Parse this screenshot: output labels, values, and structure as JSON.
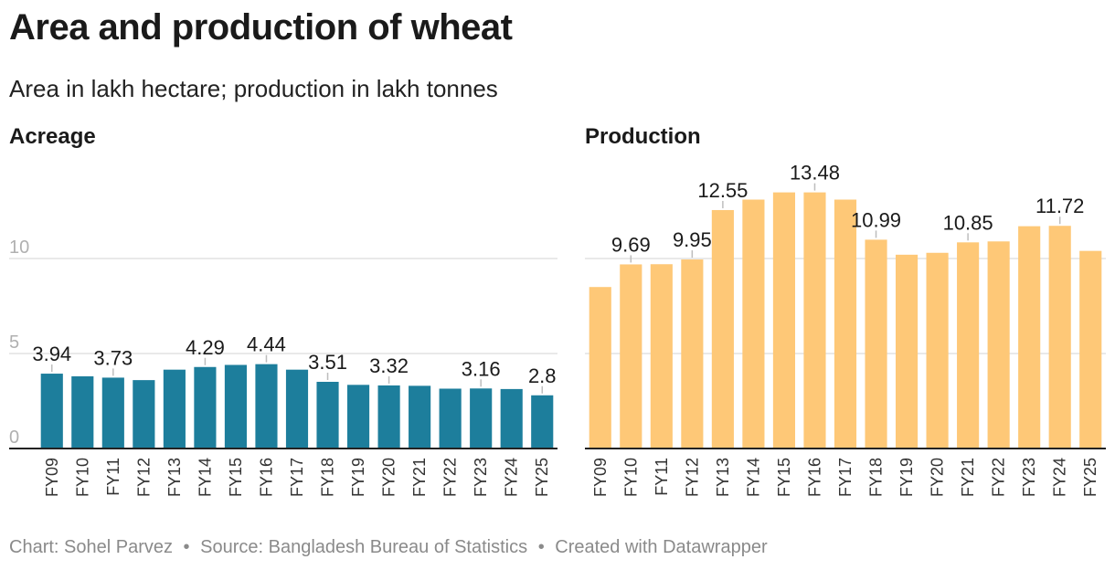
{
  "title": "Area and production of wheat",
  "subtitle": "Area in lakh hectare; production in lakh tonnes",
  "footer": {
    "chart_by": "Chart: Sohel Parvez",
    "source": "Source: Bangladesh Bureau of Statistics",
    "created": "Created with Datawrapper",
    "separator": "•"
  },
  "colors": {
    "acreage": "#1d7e9c",
    "production": "#fec877"
  },
  "chart_data": [
    {
      "type": "bar",
      "title": "Acreage",
      "categories": [
        "FY09",
        "FY10",
        "FY11",
        "FY12",
        "FY13",
        "FY14",
        "FY15",
        "FY16",
        "FY17",
        "FY18",
        "FY19",
        "FY20",
        "FY21",
        "FY22",
        "FY23",
        "FY24",
        "FY25"
      ],
      "values": [
        3.94,
        3.8,
        3.73,
        3.6,
        4.15,
        4.29,
        4.4,
        4.44,
        4.15,
        3.51,
        3.35,
        3.32,
        3.3,
        3.15,
        3.16,
        3.13,
        2.8
      ],
      "labels": [
        "3.94",
        "",
        "3.73",
        "",
        "",
        "4.29",
        "",
        "4.44",
        "",
        "3.51",
        "",
        "3.32",
        "",
        "",
        "3.16",
        "",
        "2.8"
      ],
      "yticks": [
        "0",
        "5",
        "10"
      ],
      "ylim": [
        0,
        20
      ],
      "grid": true
    },
    {
      "type": "bar",
      "title": "Production",
      "categories": [
        "FY09",
        "FY10",
        "FY11",
        "FY12",
        "FY13",
        "FY14",
        "FY15",
        "FY16",
        "FY17",
        "FY18",
        "FY19",
        "FY20",
        "FY21",
        "FY22",
        "FY23",
        "FY24",
        "FY25"
      ],
      "values": [
        8.5,
        9.69,
        9.7,
        9.95,
        12.55,
        13.1,
        13.48,
        13.48,
        13.1,
        10.99,
        10.2,
        10.3,
        10.85,
        10.9,
        11.7,
        11.72,
        10.4
      ],
      "labels": [
        "",
        "9.69",
        "",
        "9.95",
        "12.55",
        "",
        "",
        "13.48",
        "",
        "10.99",
        "",
        "",
        "10.85",
        "",
        "",
        "11.72",
        ""
      ],
      "yticks": [
        "",
        "",
        ""
      ],
      "ylim": [
        0,
        20
      ],
      "grid": true
    }
  ]
}
